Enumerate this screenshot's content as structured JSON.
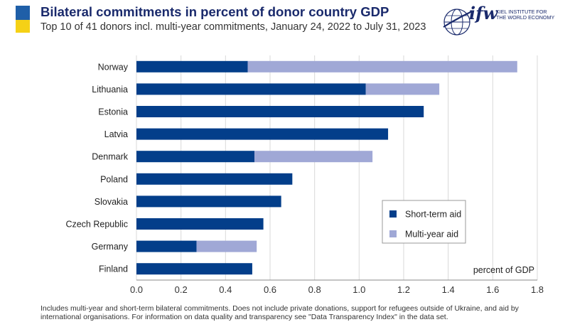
{
  "header": {
    "title": "Bilateral commitments in percent of donor country GDP",
    "subtitle": "Top 10 of 41 donors incl. multi-year commitments, January 24, 2022 to July 31, 2023"
  },
  "logo": {
    "word": "ifw",
    "line1": "KIEL INSTITUTE FOR",
    "line2": "THE WORLD ECONOMY"
  },
  "colors": {
    "flag_blue": "#1f5fa8",
    "flag_yellow": "#f5d116",
    "short_term": "#033e8a",
    "multi_year": "#a0a8d6",
    "grid": "#d9d9d9"
  },
  "chart_data": {
    "type": "bar",
    "orientation": "horizontal",
    "stacked": true,
    "categories": [
      "Norway",
      "Lithuania",
      "Estonia",
      "Latvia",
      "Denmark",
      "Poland",
      "Slovakia",
      "Czech Republic",
      "Germany",
      "Finland"
    ],
    "series": [
      {
        "name": "Short-term aid",
        "values": [
          0.5,
          1.03,
          1.29,
          1.13,
          0.53,
          0.7,
          0.65,
          0.57,
          0.27,
          0.52
        ]
      },
      {
        "name": "Multi-year aid",
        "values": [
          1.21,
          0.33,
          0.0,
          0.0,
          0.53,
          0.0,
          0.0,
          0.0,
          0.27,
          0.0
        ]
      }
    ],
    "xlim": [
      0,
      1.8
    ],
    "xticks": [
      "0.0",
      "0.2",
      "0.4",
      "0.6",
      "0.8",
      "1.0",
      "1.2",
      "1.4",
      "1.6",
      "1.8"
    ],
    "xlabel": "percent of GDP",
    "grid": "vertical",
    "legend": "lower-right"
  },
  "footnote": "Includes multi-year and short-term bilateral commitments. Does not include private donations, support for refugees outside of Ukraine, and aid by international organisations. For information on data quality and transparency see \"Data Transparency Index\" in the data set."
}
